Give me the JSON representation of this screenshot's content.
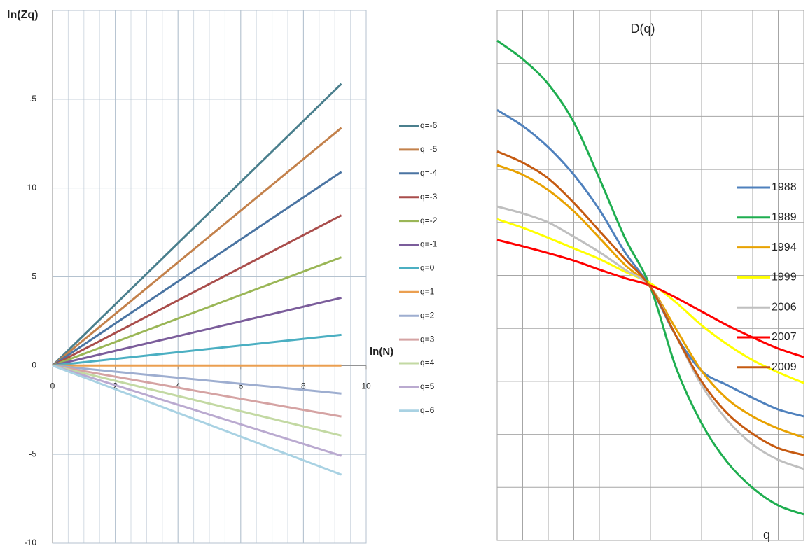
{
  "chart_data": [
    {
      "type": "line",
      "title": "ln(Zq)",
      "x_label": "ln(N)",
      "x": [
        0,
        9.21
      ],
      "xlim": [
        0,
        10
      ],
      "xticks": [
        0,
        2,
        4,
        6,
        8,
        10
      ],
      "x_minor_step": 0.5,
      "ylim": [
        -10,
        20
      ],
      "yticks": [
        -10,
        -5,
        0,
        5,
        10,
        {
          "value": 15,
          "label": ".5"
        }
      ],
      "grid": true,
      "legend": "right",
      "series": [
        {
          "name": "q=-6",
          "color": "#4a7f8d",
          "values": [
            0,
            15.87
          ]
        },
        {
          "name": "q=-5",
          "color": "#c3814b",
          "values": [
            0,
            13.39
          ]
        },
        {
          "name": "q=-4",
          "color": "#4a74a2",
          "values": [
            0,
            10.91
          ]
        },
        {
          "name": "q=-3",
          "color": "#a94d4b",
          "values": [
            0,
            8.46
          ]
        },
        {
          "name": "q=-2",
          "color": "#9ab656",
          "values": [
            0,
            6.1
          ]
        },
        {
          "name": "q=-1",
          "color": "#7b5d9b",
          "values": [
            0,
            3.82
          ]
        },
        {
          "name": "q=0",
          "color": "#4bafc2",
          "values": [
            0,
            1.73
          ]
        },
        {
          "name": "q=1",
          "color": "#eb9f50",
          "values": [
            0,
            0
          ]
        },
        {
          "name": "q=2",
          "color": "#9eaed0",
          "values": [
            0,
            -1.57
          ]
        },
        {
          "name": "q=3",
          "color": "#d5a3a3",
          "values": [
            0,
            -2.87
          ]
        },
        {
          "name": "q=4",
          "color": "#c3d9a3",
          "values": [
            0,
            -3.94
          ]
        },
        {
          "name": "q=5",
          "color": "#baaad0",
          "values": [
            0,
            -5.08
          ]
        },
        {
          "name": "q=6",
          "color": "#a9d2e3",
          "values": [
            0,
            -6.14
          ]
        }
      ]
    },
    {
      "type": "line",
      "title": "D(q)",
      "x_label": "q",
      "smooth": true,
      "tick_labels": false,
      "x": [
        -6,
        -5,
        -4,
        -3,
        -2,
        -1,
        0,
        1,
        2,
        3,
        4,
        5,
        6
      ],
      "xlim": [
        -6,
        6
      ],
      "xticks": [
        -6,
        -5,
        -4,
        -3,
        -2,
        -1,
        0,
        1,
        2,
        3,
        4,
        5,
        6
      ],
      "ylim": [
        0,
        10
      ],
      "yticks": [
        0,
        1,
        2,
        3,
        4,
        5,
        6,
        7,
        8,
        9,
        10
      ],
      "grid": true,
      "legend": "right",
      "series": [
        {
          "name": "1988",
          "color": "#4f81bd",
          "values": [
            8.12,
            7.82,
            7.42,
            6.9,
            6.24,
            5.44,
            4.78,
            3.86,
            3.2,
            2.93,
            2.69,
            2.47,
            2.34
          ]
        },
        {
          "name": "1989",
          "color": "#1fae50",
          "values": [
            9.43,
            9.08,
            8.61,
            7.89,
            6.83,
            5.71,
            4.78,
            3.26,
            2.21,
            1.48,
            0.99,
            0.66,
            0.49
          ]
        },
        {
          "name": "1994",
          "color": "#e8a202",
          "values": [
            7.08,
            6.9,
            6.61,
            6.21,
            5.71,
            5.2,
            4.78,
            3.99,
            3.2,
            2.67,
            2.34,
            2.11,
            1.94
          ]
        },
        {
          "name": "1999",
          "color": "#ffff00",
          "values": [
            6.06,
            5.9,
            5.71,
            5.51,
            5.31,
            5.07,
            4.85,
            4.49,
            4.06,
            3.7,
            3.4,
            3.17,
            2.97
          ]
        },
        {
          "name": "2006",
          "color": "#bfbfbf",
          "values": [
            6.3,
            6.17,
            6.0,
            5.73,
            5.44,
            5.11,
            4.78,
            3.86,
            2.93,
            2.27,
            1.81,
            1.52,
            1.35
          ]
        },
        {
          "name": "2007",
          "color": "#ff0000",
          "values": [
            5.67,
            5.55,
            5.42,
            5.28,
            5.11,
            4.95,
            4.81,
            4.58,
            4.32,
            4.06,
            3.83,
            3.62,
            3.46
          ]
        },
        {
          "name": "2009",
          "color": "#c55a11",
          "values": [
            7.34,
            7.13,
            6.83,
            6.37,
            5.84,
            5.31,
            4.78,
            3.86,
            3.0,
            2.4,
            2.01,
            1.74,
            1.61
          ]
        }
      ]
    }
  ]
}
